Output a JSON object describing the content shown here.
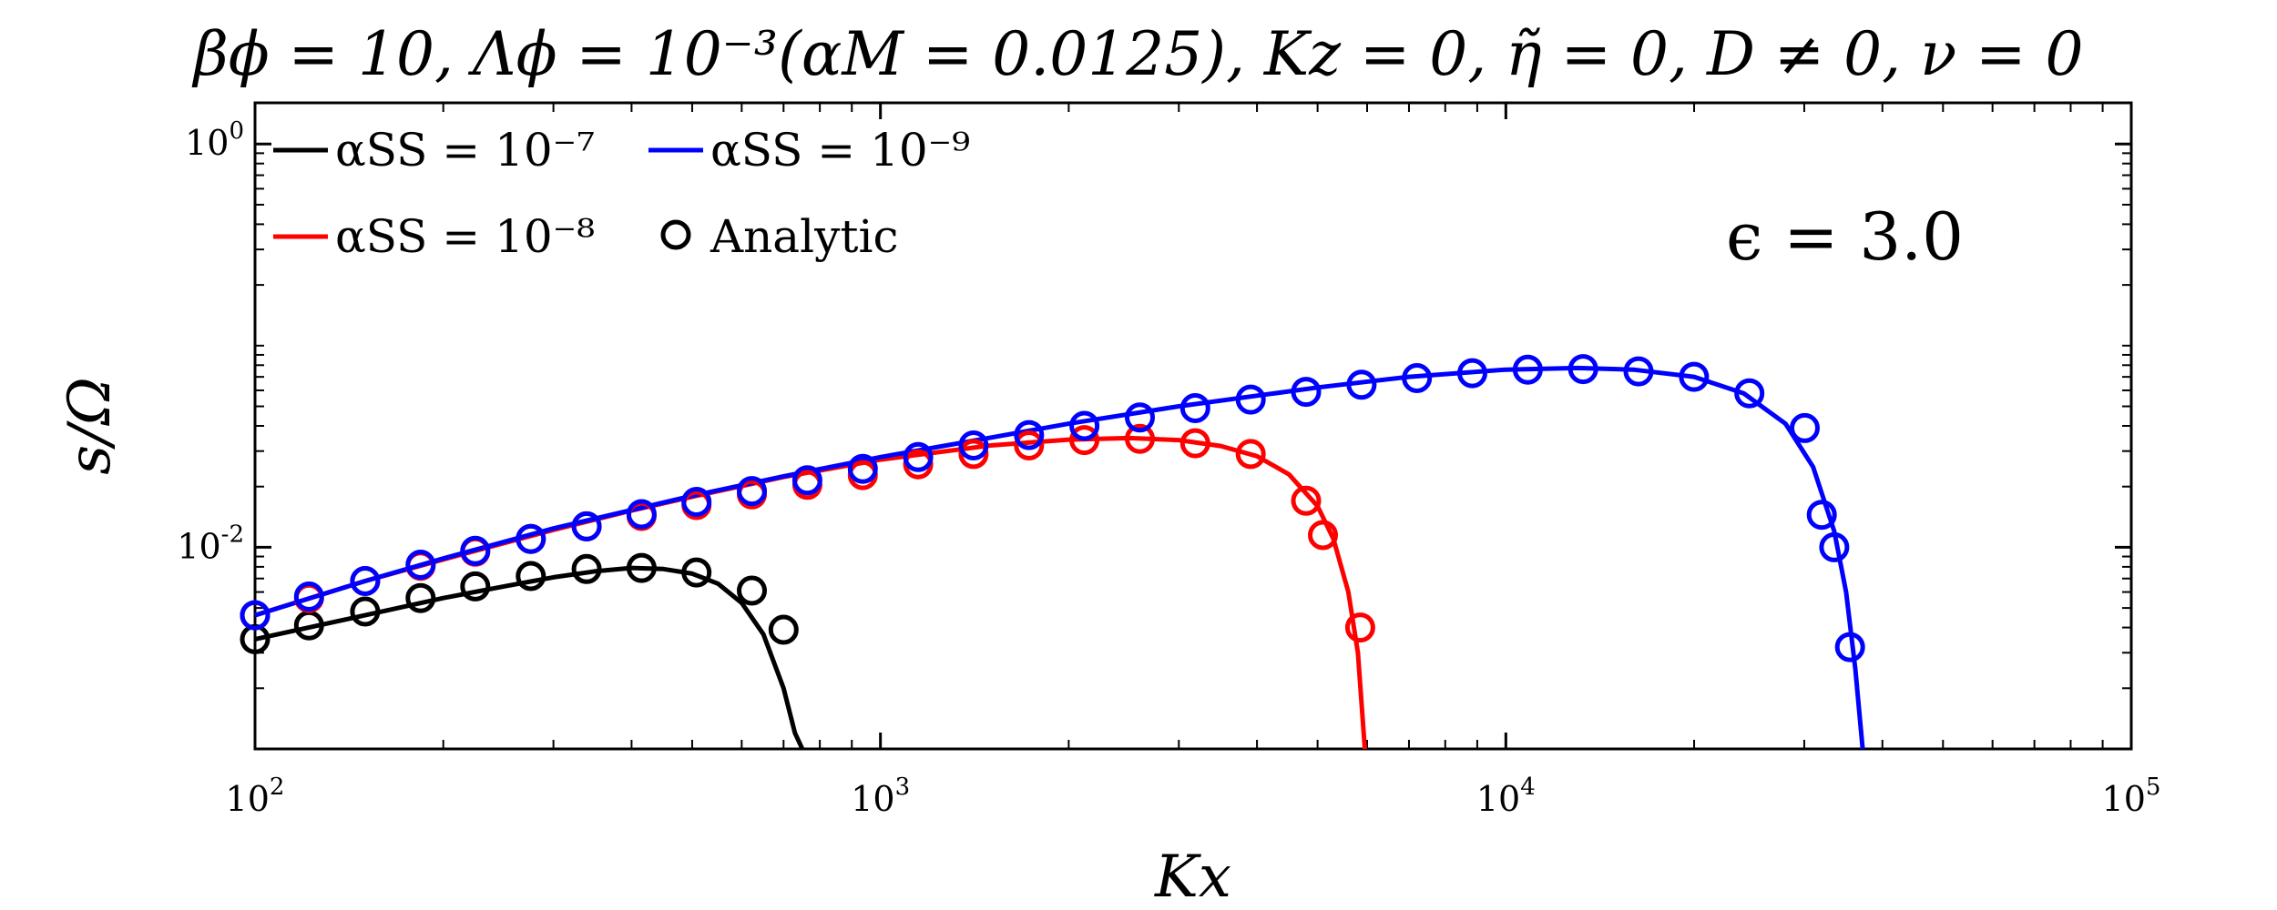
{
  "chart_data": {
    "type": "line",
    "title": "β_ϕ = 10, Λ_ϕ = 10^{−3}(α_M = 0.0125), K_z = 0, η̃ = 0, D ≠ 0, ν = 0",
    "title_display": "βϕ = 10, Λϕ = 10⁻³(αM = 0.0125), Kz = 0, η̃ = 0, D ≠ 0, ν = 0",
    "xlabel": "K_x",
    "xlabel_display": "Kx",
    "ylabel": "s/Ω",
    "xscale": "log",
    "yscale": "log",
    "xlim": [
      100,
      100000
    ],
    "ylim": [
      0.001,
      1.6
    ],
    "x_ticks": [
      {
        "value": 100,
        "base": "10",
        "exp": "2"
      },
      {
        "value": 1000,
        "base": "10",
        "exp": "3"
      },
      {
        "value": 10000,
        "base": "10",
        "exp": "4"
      },
      {
        "value": 100000,
        "base": "10",
        "exp": "5"
      }
    ],
    "y_ticks": [
      {
        "value": 0.01,
        "base": "10",
        "exp": "-2"
      },
      {
        "value": 1,
        "base": "10",
        "exp": "0"
      }
    ],
    "grid": false,
    "legend_position": "top-left",
    "annotation": "ϵ = 3.0",
    "series": [
      {
        "name": "α_SS = 10^{−7}",
        "name_display": "αSS = 10⁻⁷",
        "color": "#000000",
        "style": "line",
        "x": [
          100,
          150,
          200,
          250,
          300,
          350,
          400,
          450,
          500,
          550,
          600,
          650,
          700,
          730,
          750
        ],
        "y": [
          0.0035,
          0.0046,
          0.0056,
          0.0064,
          0.0071,
          0.0076,
          0.0079,
          0.0078,
          0.0074,
          0.0066,
          0.0053,
          0.0037,
          0.002,
          0.0012,
          0.0008
        ]
      },
      {
        "name": "α_SS = 10^{−8}",
        "name_display": "αSS = 10⁻⁸",
        "color": "#ff0000",
        "style": "line",
        "x": [
          100,
          150,
          200,
          300,
          400,
          500,
          700,
          1000,
          1500,
          2000,
          2500,
          3000,
          3500,
          4000,
          4500,
          5000,
          5300,
          5600,
          5800,
          5950
        ],
        "y": [
          0.0046,
          0.0068,
          0.0087,
          0.0122,
          0.0152,
          0.0178,
          0.0223,
          0.0272,
          0.032,
          0.0342,
          0.0348,
          0.034,
          0.0318,
          0.0283,
          0.023,
          0.016,
          0.011,
          0.006,
          0.003,
          0.0008
        ]
      },
      {
        "name": "α_SS = 10^{−9}",
        "name_display": "αSS = 10⁻⁹",
        "color": "#0000ff",
        "style": "line",
        "x": [
          100,
          150,
          200,
          300,
          500,
          700,
          1000,
          1500,
          2000,
          3000,
          5000,
          7000,
          10000,
          13000,
          16000,
          20000,
          24000,
          28000,
          31000,
          33500,
          35000,
          36200,
          37200
        ],
        "y": [
          0.0046,
          0.0068,
          0.0088,
          0.0124,
          0.018,
          0.0225,
          0.028,
          0.035,
          0.041,
          0.05,
          0.062,
          0.07,
          0.076,
          0.0775,
          0.076,
          0.07,
          0.058,
          0.041,
          0.025,
          0.012,
          0.006,
          0.0025,
          0.0008
        ]
      },
      {
        "name": "Analytic",
        "color": "#000000",
        "style": "markers",
        "marker": "circle",
        "groups": [
          {
            "color": "#000000",
            "x": [
              100,
              122,
              150,
              184,
              225,
              276,
              339,
              415,
              508,
              623,
              700
            ],
            "y": [
              0.0035,
              0.0041,
              0.0048,
              0.0056,
              0.0064,
              0.0072,
              0.0078,
              0.0079,
              0.0075,
              0.0061,
              0.0039
            ]
          },
          {
            "color": "#ff0000",
            "x": [
              100,
              122,
              150,
              184,
              225,
              276,
              339,
              415,
              508,
              623,
              764,
              937,
              1149,
              1409,
              1728,
              2119,
              2599,
              3187,
              3909,
              4793,
              5100,
              5850
            ],
            "y": [
              0.0046,
              0.0056,
              0.0068,
              0.0081,
              0.0095,
              0.011,
              0.0127,
              0.0143,
              0.0162,
              0.0183,
              0.0204,
              0.0228,
              0.0258,
              0.029,
              0.032,
              0.034,
              0.0345,
              0.0328,
              0.029,
              0.017,
              0.0115,
              0.004
            ]
          },
          {
            "color": "#0000ff",
            "x": [
              100,
              122,
              150,
              184,
              225,
              276,
              339,
              415,
              508,
              623,
              764,
              937,
              1149,
              1409,
              1728,
              2119,
              2599,
              3187,
              3909,
              4793,
              5878,
              7208,
              8839,
              10839,
              13292,
              16300,
              19989,
              24512,
              30058,
              32000,
              33500,
              35500
            ],
            "y": [
              0.0046,
              0.0057,
              0.0068,
              0.0082,
              0.0096,
              0.011,
              0.0127,
              0.0146,
              0.0168,
              0.019,
              0.0215,
              0.0245,
              0.028,
              0.032,
              0.036,
              0.04,
              0.044,
              0.049,
              0.054,
              0.059,
              0.064,
              0.069,
              0.073,
              0.076,
              0.0765,
              0.0745,
              0.07,
              0.058,
              0.039,
              0.0145,
              0.01,
              0.0032
            ]
          }
        ]
      }
    ]
  }
}
